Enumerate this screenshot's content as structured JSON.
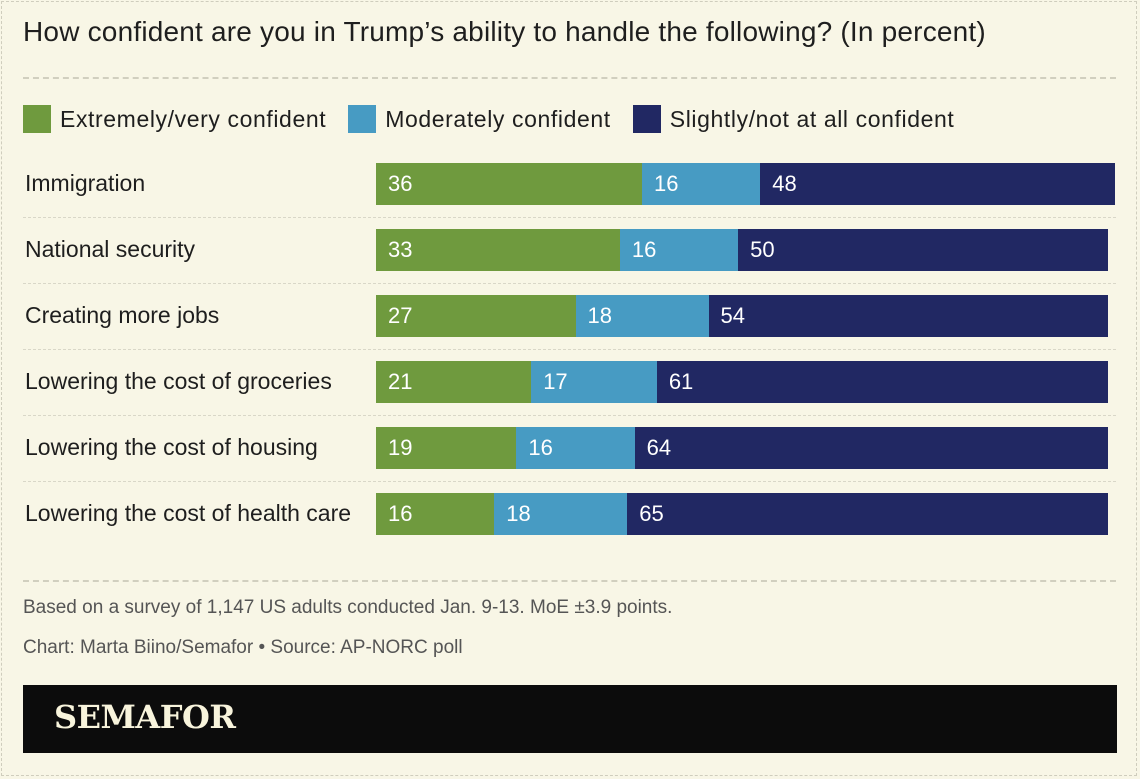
{
  "title": "How confident are you in Trump’s ability to handle the following? (In percent)",
  "legend": [
    {
      "label": "Extremely/very confident",
      "color": "#6f9a3e"
    },
    {
      "label": "Moderately confident",
      "color": "#479bc3"
    },
    {
      "label": "Slightly/not at all confident",
      "color": "#212863"
    }
  ],
  "chart_data": {
    "type": "bar",
    "orientation": "horizontal",
    "stacked": true,
    "title": "How confident are you in Trump’s ability to handle the following? (In percent)",
    "categories": [
      "Immigration",
      "National security",
      "Creating more jobs",
      "Lowering the cost of groceries",
      "Lowering the cost of housing",
      "Lowering the cost of health care"
    ],
    "series": [
      {
        "name": "Extremely/very confident",
        "color": "#6f9a3e",
        "values": [
          36,
          33,
          27,
          21,
          19,
          16
        ]
      },
      {
        "name": "Moderately confident",
        "color": "#479bc3",
        "values": [
          16,
          16,
          18,
          17,
          16,
          18
        ]
      },
      {
        "name": "Slightly/not at all confident",
        "color": "#212863",
        "values": [
          48,
          50,
          54,
          61,
          64,
          65
        ]
      }
    ],
    "xlim": [
      0,
      100
    ],
    "unit": "percent",
    "legend_position": "top-left"
  },
  "footer": {
    "note": "Based on a survey of 1,147 US adults conducted Jan. 9-13. MoE ±3.9 points.",
    "credit": "Chart: Marta Biino/Semafor • Source: AP-NORC poll",
    "brand": "SEMAFOR"
  }
}
